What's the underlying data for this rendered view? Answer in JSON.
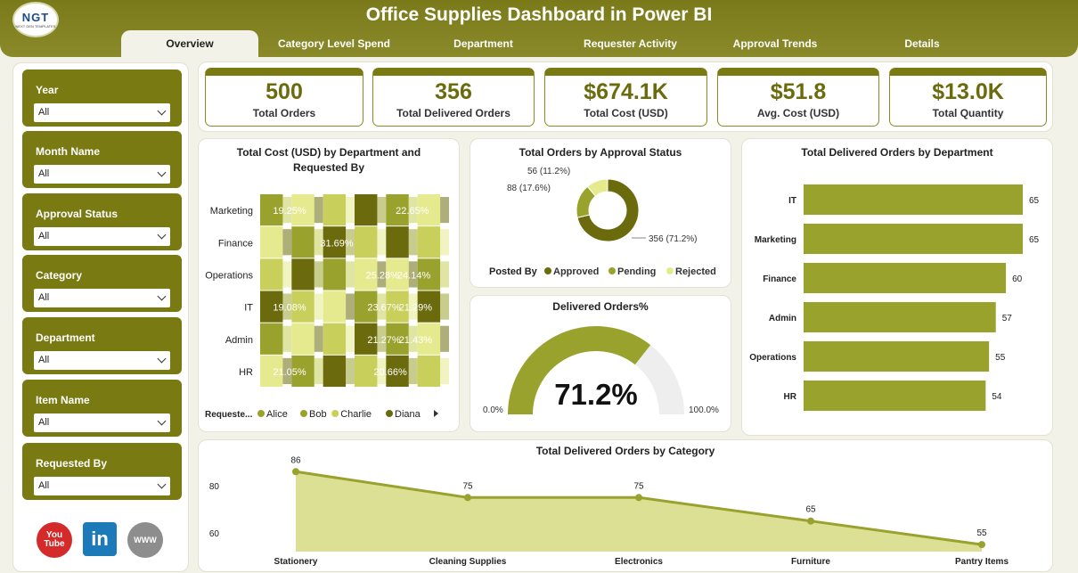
{
  "app": {
    "title": "Office Supplies Dashboard in Power BI",
    "logo_text": "NGT",
    "logo_sub": "NEXT GEN TEMPLATES"
  },
  "tabs": [
    "Overview",
    "Category Level Spend",
    "Department",
    "Requester Activity",
    "Approval Trends",
    "Details"
  ],
  "filters": [
    {
      "label": "Year",
      "value": "All"
    },
    {
      "label": "Month Name",
      "value": "All"
    },
    {
      "label": "Approval Status",
      "value": "All"
    },
    {
      "label": "Category",
      "value": "All"
    },
    {
      "label": "Department",
      "value": "All"
    },
    {
      "label": "Item Name",
      "value": "All"
    },
    {
      "label": "Requested By",
      "value": "All"
    }
  ],
  "social": [
    "youtube-icon",
    "linkedin-icon",
    "website-icon"
  ],
  "kpis": [
    {
      "value": "500",
      "label": "Total Orders"
    },
    {
      "value": "356",
      "label": "Total Delivered Orders"
    },
    {
      "value": "$674.1K",
      "label": "Total Cost (USD)"
    },
    {
      "value": "$51.8",
      "label": "Avg. Cost (USD)"
    },
    {
      "value": "$13.0K",
      "label": "Total Quantity"
    }
  ],
  "colors": {
    "dark": "#6b6b0e",
    "mid": "#9aa22e",
    "light": "#c8cf5a",
    "pale": "#e6ea8e",
    "header": "#7a7a12"
  },
  "ribbon": {
    "title_line1": "Total Cost (USD) by Department and",
    "title_line2": "Requested By",
    "departments": [
      "Marketing",
      "Finance",
      "Operations",
      "IT",
      "Admin",
      "HR"
    ],
    "labels": {
      "Marketing": [
        "19.25%",
        "22.65%"
      ],
      "Finance": [
        "31.69%"
      ],
      "Operations": [
        "25.28%",
        "24.14%"
      ],
      "IT": [
        "19.08%",
        "23.67%",
        "21.29%"
      ],
      "Admin": [
        "21.27%",
        "21.43%"
      ],
      "HR": [
        "21.05%",
        "20.66%"
      ]
    },
    "legend_title": "Requeste...",
    "legend": [
      "Alice",
      "Bob",
      "Charlie",
      "Diana"
    ]
  },
  "donut": {
    "title": "Total Orders by Approval Status",
    "legend_title": "Posted By",
    "legend": [
      "Approved",
      "Pending",
      "Rejected"
    ],
    "values": [
      356,
      88,
      56
    ],
    "labels": [
      "356 (71.2%)",
      "88 (17.6%)",
      "56 (11.2%)"
    ]
  },
  "gauge": {
    "title": "Delivered Orders%",
    "value": "71.2%",
    "fraction": 0.712,
    "min": "0.0%",
    "max": "100.0%"
  },
  "bar": {
    "title": "Total Delivered Orders by Department",
    "categories": [
      "IT",
      "Marketing",
      "Finance",
      "Admin",
      "Operations",
      "HR"
    ],
    "values": [
      65,
      65,
      60,
      57,
      55,
      54
    ]
  },
  "chart_data": {
    "type": "area",
    "title": "Total Delivered Orders by Category",
    "categories": [
      "Stationery",
      "Cleaning Supplies",
      "Electronics",
      "Furniture",
      "Pantry Items"
    ],
    "values": [
      86,
      75,
      75,
      65,
      55
    ],
    "yticks": [
      "80",
      "60"
    ],
    "ylim": [
      52,
      88
    ]
  }
}
